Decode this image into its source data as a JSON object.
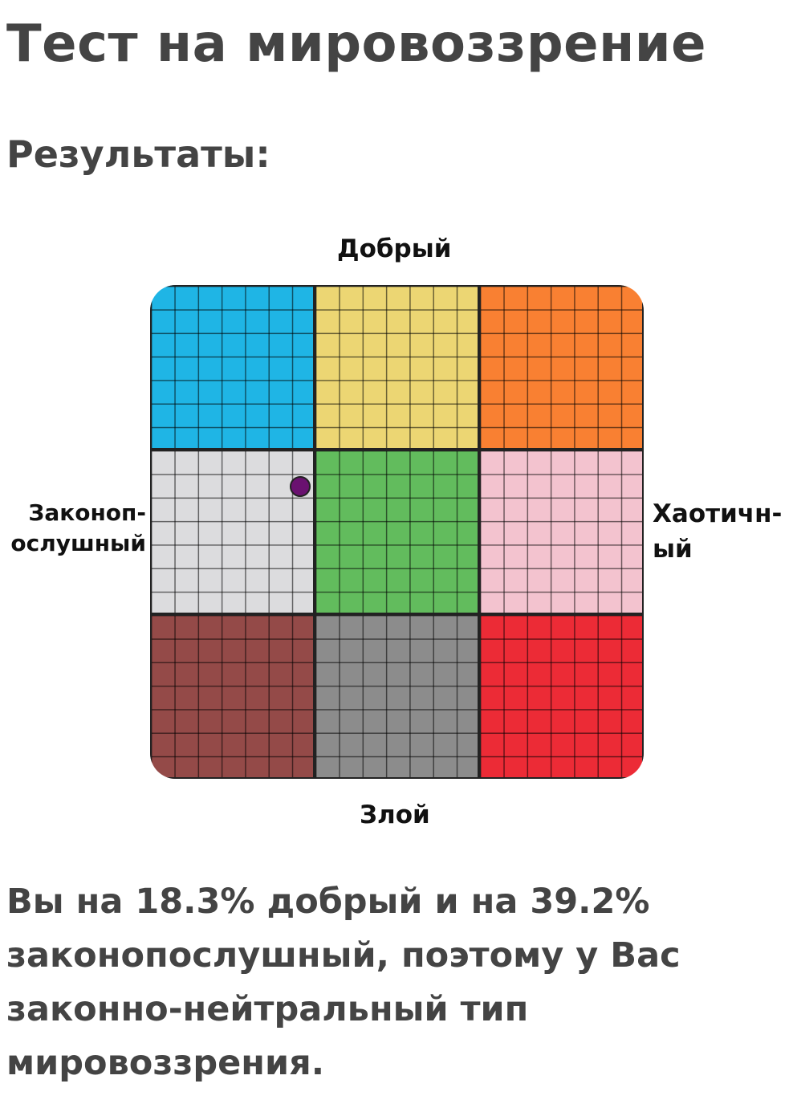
{
  "title": "Тест на мировоззрение",
  "subtitle": "Результаты:",
  "chart": {
    "labels": {
      "top": "Добрый",
      "bottom": "Злой",
      "left": "Законоп-\nослушный",
      "right": "Хаотичн-\nый"
    },
    "quadrant_colors": [
      "#1fb5e5",
      "#ecd673",
      "#f98032",
      "#dcdcde",
      "#62bc5d",
      "#f3c3cf",
      "#944a48",
      "#8c8c8c",
      "#ec2b36"
    ],
    "result": {
      "good_percent": 18.3,
      "lawful_percent": 39.2,
      "marker_color": "#6a1170"
    }
  },
  "result_text": "Вы на 18.3% добрый и на 39.2% законопослушный, поэтому у Вас законно-нейтральный тип мировоззрения."
}
